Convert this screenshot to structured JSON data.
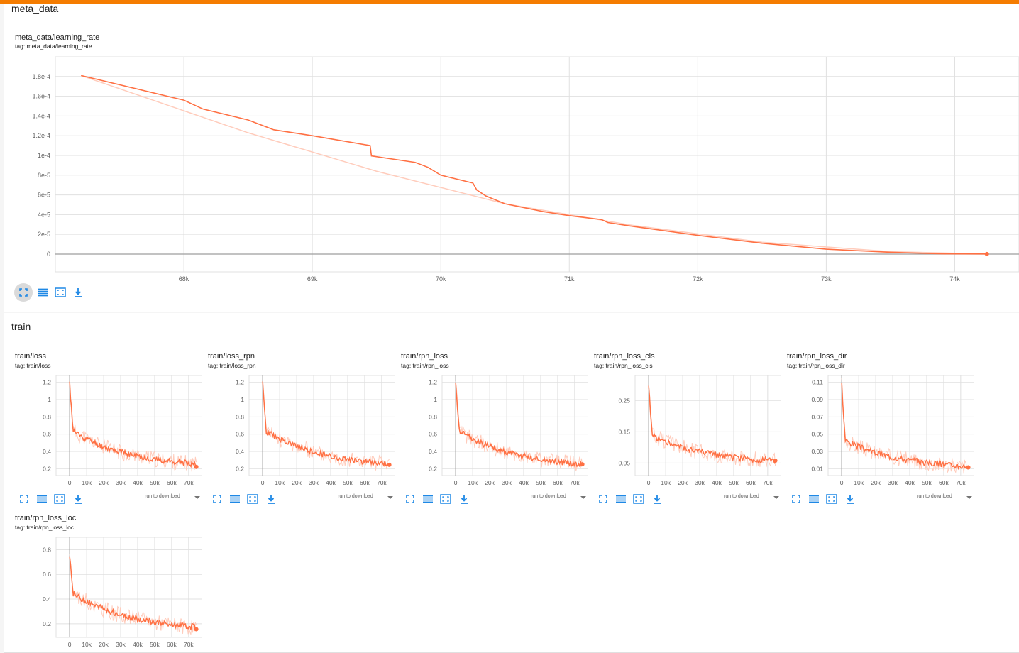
{
  "sections": {
    "meta": {
      "title": "meta_data"
    },
    "train": {
      "title": "train"
    }
  },
  "toolbar": {
    "run_select_placeholder": "run to download"
  },
  "colors": {
    "accent": "#f57c00",
    "series": "#ff7043",
    "series_light": "#ffccbc",
    "icon": "#1e88e5"
  },
  "charts": {
    "lr": {
      "title": "meta_data/learning_rate",
      "tag": "tag: meta_data/learning_rate"
    },
    "loss": {
      "title": "train/loss",
      "tag": "tag: train/loss"
    },
    "loss_rpn": {
      "title": "train/loss_rpn",
      "tag": "tag: train/loss_rpn"
    },
    "rpn_loss": {
      "title": "train/rpn_loss",
      "tag": "tag: train/rpn_loss"
    },
    "rpn_loss_cls": {
      "title": "train/rpn_loss_cls",
      "tag": "tag: train/rpn_loss_cls"
    },
    "rpn_loss_dir": {
      "title": "train/rpn_loss_dir",
      "tag": "tag: train/rpn_loss_dir"
    },
    "rpn_loss_loc": {
      "title": "train/rpn_loss_loc",
      "tag": "tag: train/rpn_loss_loc"
    }
  },
  "chart_data": [
    {
      "id": "lr",
      "type": "line",
      "xlim": [
        67000,
        74500
      ],
      "ylim": [
        -1.8e-05,
        0.0002
      ],
      "xticks": [
        68000,
        69000,
        70000,
        71000,
        72000,
        73000,
        74000
      ],
      "xtick_labels": [
        "68k",
        "69k",
        "70k",
        "71k",
        "72k",
        "73k",
        "74k"
      ],
      "yticks": [
        0,
        2e-05,
        4e-05,
        6e-05,
        8e-05,
        0.0001,
        0.00012,
        0.00014,
        0.00016,
        0.00018
      ],
      "ytick_labels": [
        "0",
        "2e-5",
        "4e-5",
        "6e-5",
        "8e-5",
        "1e-4",
        "1.2e-4",
        "1.4e-4",
        "1.6e-4",
        "1.8e-4"
      ],
      "grid": true,
      "series": [
        {
          "x": [
            67200,
            68000,
            68150,
            68500,
            68700,
            69000,
            69450,
            69460,
            69800,
            69900,
            70000,
            70250,
            70280,
            70350,
            70500,
            70800,
            71000,
            71250,
            71300,
            71500,
            72000,
            72500,
            73000,
            73500,
            73900,
            74250
          ],
          "y": [
            0.000181,
            0.000156,
            0.000147,
            0.000136,
            0.000126,
            0.00012,
            0.00011,
            9.95e-05,
            9.3e-05,
            8.8e-05,
            8e-05,
            7.2e-05,
            6.5e-05,
            5.9e-05,
            5.1e-05,
            4.3e-05,
            3.9e-05,
            3.5e-05,
            3.2e-05,
            2.8e-05,
            1.9e-05,
            1.1e-05,
            5e-06,
            1.8e-06,
            3e-07,
            1e-07
          ]
        }
      ],
      "smoothed_trace": {
        "x": [
          67200,
          68500,
          69500,
          70500,
          71500,
          72500,
          73500,
          74250
        ],
        "y": [
          0.000181,
          0.000123,
          8.4e-05,
          5.1e-05,
          2.9e-05,
          1.2e-05,
          2.5e-06,
          1e-07
        ]
      }
    },
    {
      "id": "loss",
      "type": "line",
      "xlim": [
        -8000,
        78000
      ],
      "ylim": [
        0.12,
        1.28
      ],
      "xticks": [
        0,
        10000,
        20000,
        30000,
        40000,
        50000,
        60000,
        70000
      ],
      "xtick_labels": [
        "0",
        "10k",
        "20k",
        "30k",
        "40k",
        "50k",
        "60k",
        "70k"
      ],
      "yticks": [
        0.2,
        0.4,
        0.6,
        0.8,
        1,
        1.2
      ],
      "ytick_labels": [
        "0.2",
        "0.4",
        "0.6",
        "0.8",
        "1",
        "1.2"
      ],
      "grid": true,
      "series": [
        {
          "start": 1.18,
          "knee": 0.6,
          "end": 0.22
        }
      ]
    },
    {
      "id": "loss_rpn",
      "type": "line",
      "xlim": [
        -8000,
        78000
      ],
      "ylim": [
        0.12,
        1.28
      ],
      "xticks": [
        0,
        10000,
        20000,
        30000,
        40000,
        50000,
        60000,
        70000
      ],
      "xtick_labels": [
        "0",
        "10k",
        "20k",
        "30k",
        "40k",
        "50k",
        "60k",
        "70k"
      ],
      "yticks": [
        0.2,
        0.4,
        0.6,
        0.8,
        1,
        1.2
      ],
      "ytick_labels": [
        "0.2",
        "0.4",
        "0.6",
        "0.8",
        "1",
        "1.2"
      ],
      "grid": true,
      "series": [
        {
          "start": 1.18,
          "knee": 0.6,
          "end": 0.22
        }
      ]
    },
    {
      "id": "rpn_loss",
      "type": "line",
      "xlim": [
        -8000,
        78000
      ],
      "ylim": [
        0.12,
        1.28
      ],
      "xticks": [
        0,
        10000,
        20000,
        30000,
        40000,
        50000,
        60000,
        70000
      ],
      "xtick_labels": [
        "0",
        "10k",
        "20k",
        "30k",
        "40k",
        "50k",
        "60k",
        "70k"
      ],
      "yticks": [
        0.2,
        0.4,
        0.6,
        0.8,
        1,
        1.2
      ],
      "ytick_labels": [
        "0.2",
        "0.4",
        "0.6",
        "0.8",
        "1",
        "1.2"
      ],
      "grid": true,
      "series": [
        {
          "start": 1.18,
          "knee": 0.6,
          "end": 0.22
        }
      ]
    },
    {
      "id": "rpn_loss_cls",
      "type": "line",
      "xlim": [
        -8000,
        78000
      ],
      "ylim": [
        0.01,
        0.33
      ],
      "xticks": [
        0,
        10000,
        20000,
        30000,
        40000,
        50000,
        60000,
        70000
      ],
      "xtick_labels": [
        "0",
        "10k",
        "20k",
        "30k",
        "40k",
        "50k",
        "60k",
        "70k"
      ],
      "yticks": [
        0.05,
        0.15,
        0.25
      ],
      "ytick_labels": [
        "0.05",
        "0.15",
        "0.25"
      ],
      "grid": true,
      "series": [
        {
          "start": 0.3,
          "knee": 0.13,
          "end": 0.05
        }
      ]
    },
    {
      "id": "rpn_loss_dir",
      "type": "line",
      "xlim": [
        -8000,
        78000
      ],
      "ylim": [
        0.002,
        0.118
      ],
      "xticks": [
        0,
        10000,
        20000,
        30000,
        40000,
        50000,
        60000,
        70000
      ],
      "xtick_labels": [
        "0",
        "10k",
        "20k",
        "30k",
        "40k",
        "50k",
        "60k",
        "70k"
      ],
      "yticks": [
        0.01,
        0.03,
        0.05,
        0.07,
        0.09,
        0.11
      ],
      "ytick_labels": [
        "0.01",
        "0.03",
        "0.05",
        "0.07",
        "0.09",
        "0.11"
      ],
      "grid": true,
      "series": [
        {
          "start": 0.108,
          "knee": 0.04,
          "end": 0.01
        }
      ]
    },
    {
      "id": "rpn_loss_loc",
      "type": "line",
      "xlim": [
        -8000,
        78000
      ],
      "ylim": [
        0.09,
        0.9
      ],
      "xticks": [
        0,
        10000,
        20000,
        30000,
        40000,
        50000,
        60000,
        70000
      ],
      "xtick_labels": [
        "0",
        "10k",
        "20k",
        "30k",
        "40k",
        "50k",
        "60k",
        "70k"
      ],
      "yticks": [
        0.2,
        0.4,
        0.6,
        0.8
      ],
      "ytick_labels": [
        "0.2",
        "0.4",
        "0.6",
        "0.8"
      ],
      "grid": true,
      "series": [
        {
          "start": 0.76,
          "knee": 0.42,
          "end": 0.15
        }
      ]
    }
  ]
}
